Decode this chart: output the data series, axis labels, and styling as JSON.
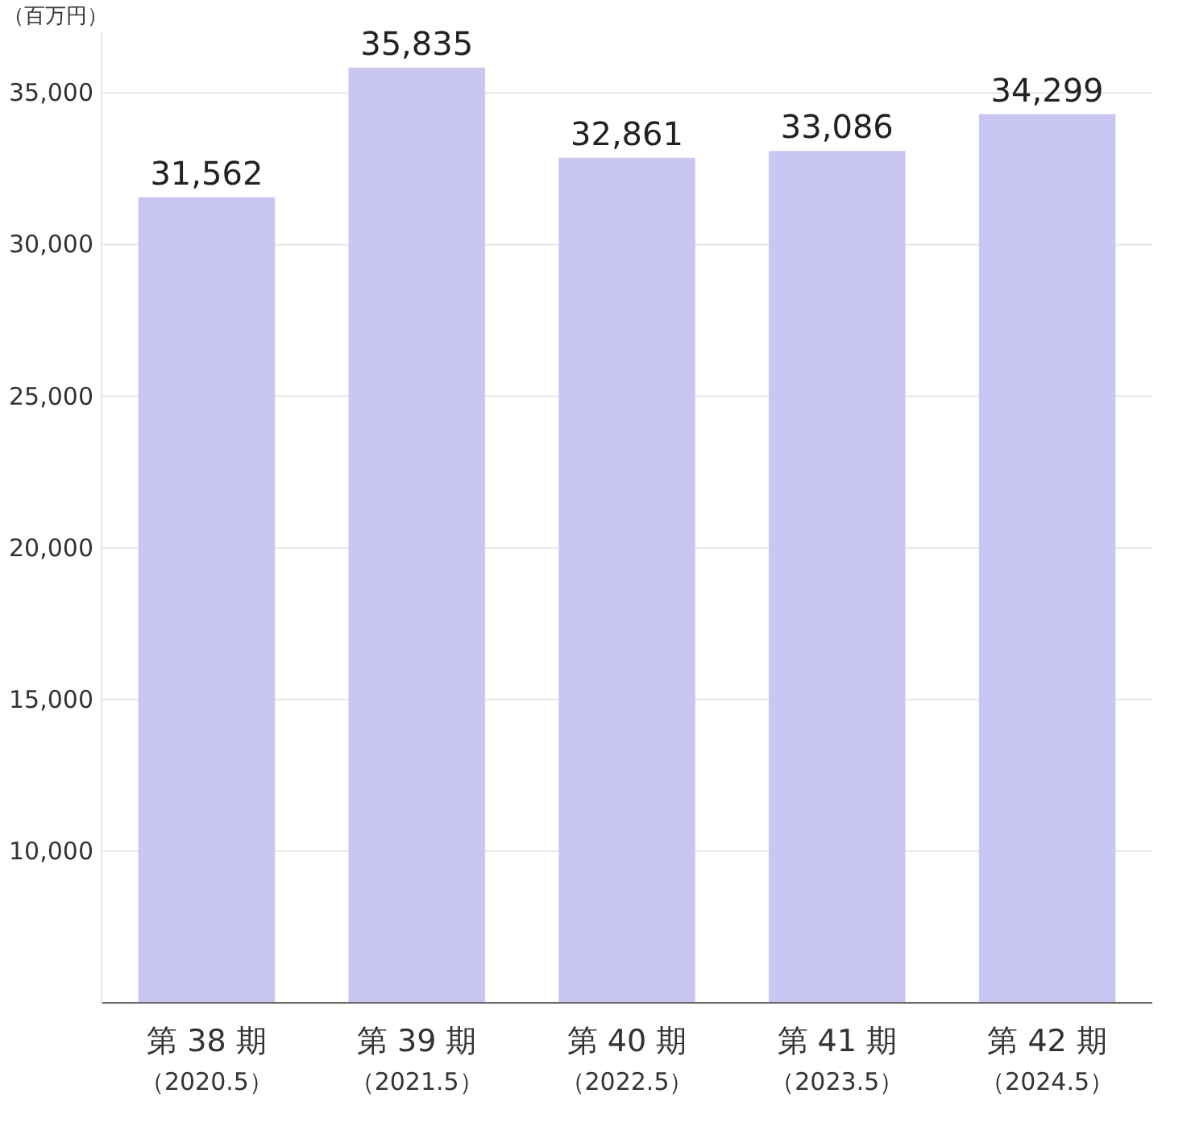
{
  "chart_data": {
    "type": "bar",
    "ylabel": "（百万円）",
    "categories": [
      "第 38 期（2020.5）",
      "第 39 期（2021.5）",
      "第 40 期（2022.5）",
      "第 41 期（2023.5）",
      "第 42 期（2024.5）"
    ],
    "values": [
      31562,
      35835,
      32861,
      33086,
      34299
    ],
    "color": "#c9c7f1",
    "ylim": [
      5000,
      37000
    ],
    "yticks": [
      {
        "value": 5000,
        "label": null
      },
      {
        "value": 10000,
        "label": "10,000"
      },
      {
        "value": 15000,
        "label": "15,000"
      },
      {
        "value": 20000,
        "label": "20,000"
      },
      {
        "value": 25000,
        "label": "25,000"
      },
      {
        "value": 30000,
        "label": "30,000"
      },
      {
        "value": 35000,
        "label": "35,000"
      }
    ],
    "value_labels": [
      "31,562",
      "35,835",
      "32,861",
      "33,086",
      "34,299"
    ],
    "grid": "y"
  }
}
